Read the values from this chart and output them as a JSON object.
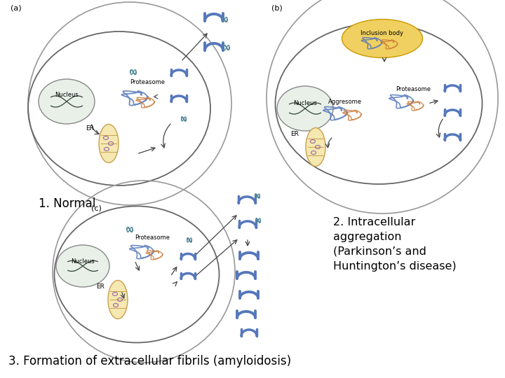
{
  "background_color": "#ffffff",
  "label_1": "1. Normal",
  "label_2": "2. Intracellular\naggregation\n(Parkinson’s and\nHuntington’s disease)",
  "label_3": "3. Formation of extracellular fibrils (amyloidosis)",
  "panel_a": "(a)",
  "panel_b": "(b)",
  "panel_c": "(c)",
  "blue": "#5577bb",
  "blue_light": "#8899cc",
  "orange": "#cc7733",
  "teal": "#558899",
  "cell_edge": "#666666",
  "nucleus_fill": "#e8f0e8",
  "nucleus_edge": "#888888",
  "er_fill": "#f5e8b0",
  "inclusion_fill": "#f0d060",
  "inclusion_edge": "#cc9900",
  "proteasome_blue": "#6688bb",
  "dna_color": "#334433",
  "arrow_color": "#333333"
}
